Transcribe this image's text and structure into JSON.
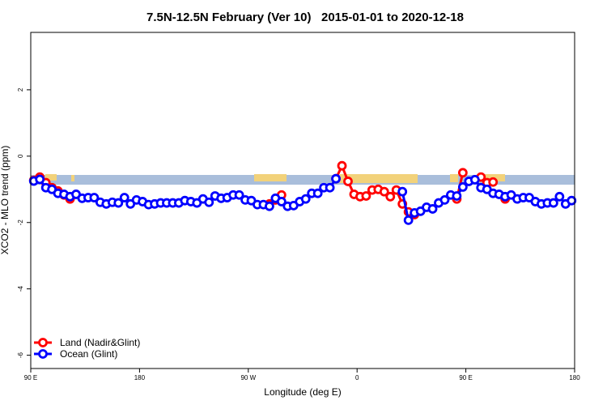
{
  "chart_data": {
    "type": "line",
    "title": "7.5N-12.5N February (Ver 10)   2015-01-01 to 2020-12-18",
    "x_label": "Longitude (deg E)",
    "y_label": "XCO2 - MLO trend (ppm)",
    "xlim": [
      90,
      540
    ],
    "xticks": [
      {
        "value": 90,
        "label": "90 E"
      },
      180,
      {
        "value": 270,
        "label": "90 W"
      },
      {
        "value": 360,
        "label": "0"
      },
      {
        "value": 450,
        "label": "90 E"
      },
      180
    ],
    "ylim": [
      -6.4,
      3.73
    ],
    "yticks": [
      -6,
      -4,
      -2,
      0,
      2
    ],
    "legend": "bottom-left",
    "x": [
      92.5,
      97.5,
      102.5,
      107.5,
      112.5,
      117.5,
      122.5,
      127.5,
      132.5,
      137.5,
      142.5,
      147.5,
      152.5,
      157.5,
      162.5,
      167.5,
      172.5,
      177.5,
      182.5,
      187.5,
      192.5,
      197.5,
      202.5,
      207.5,
      212.5,
      217.5,
      222.5,
      227.5,
      232.5,
      237.5,
      242.5,
      247.5,
      252.5,
      257.5,
      262.5,
      267.5,
      272.5,
      277.5,
      282.5,
      287.5,
      292.5,
      297.5,
      302.5,
      307.5,
      312.5,
      317.5,
      322.5,
      327.5,
      332.5,
      337.5,
      342.5,
      347.5,
      352.5,
      357.5,
      362.5,
      367.5,
      372.5,
      377.5,
      382.5,
      387.5,
      392.5,
      397.5,
      402.5,
      407.5,
      412.5,
      417.5,
      422.5,
      427.5,
      432.5,
      437.5,
      442.5,
      447.5,
      452.5,
      457.5,
      462.5,
      467.5,
      472.5,
      477.5,
      482.5,
      487.5,
      492.5,
      497.5,
      502.5,
      507.5,
      512.5,
      517.5,
      522.5,
      527.5,
      532.5,
      537.5
    ],
    "series": [
      {
        "name": "Land (Nadir&Glint)",
        "color": "#ff0000",
        "values": [
          -0.73,
          -0.63,
          -0.8,
          -0.95,
          -1.05,
          -1.17,
          -1.29,
          null,
          null,
          null,
          null,
          null,
          null,
          null,
          null,
          null,
          null,
          null,
          null,
          null,
          null,
          null,
          null,
          null,
          null,
          null,
          null,
          null,
          null,
          null,
          null,
          null,
          null,
          null,
          null,
          null,
          null,
          null,
          null,
          -1.44,
          -1.32,
          -1.17,
          null,
          null,
          null,
          null,
          null,
          null,
          null,
          null,
          -0.68,
          -0.29,
          -0.76,
          -1.15,
          -1.22,
          -1.2,
          -1.02,
          -1.0,
          -1.07,
          -1.22,
          -1.02,
          -1.44,
          -1.68,
          -1.76,
          null,
          null,
          null,
          null,
          null,
          null,
          -1.29,
          -0.5,
          null,
          null,
          -0.63,
          -0.8,
          -0.78,
          null,
          -1.29,
          null,
          null,
          null,
          null,
          null,
          null,
          null,
          null,
          null,
          null,
          null
        ]
      },
      {
        "name": "Ocean (Glint)",
        "color": "#0000ff",
        "values": [
          -0.75,
          -0.7,
          -0.95,
          -1.0,
          -1.12,
          -1.15,
          -1.22,
          -1.15,
          -1.27,
          -1.25,
          -1.25,
          -1.39,
          -1.44,
          -1.39,
          -1.41,
          -1.25,
          -1.44,
          -1.32,
          -1.37,
          -1.46,
          -1.44,
          -1.41,
          -1.41,
          -1.41,
          -1.41,
          -1.34,
          -1.37,
          -1.41,
          -1.29,
          -1.39,
          -1.2,
          -1.27,
          -1.25,
          -1.17,
          -1.17,
          -1.32,
          -1.34,
          -1.46,
          -1.46,
          -1.51,
          -1.27,
          -1.37,
          -1.51,
          -1.49,
          -1.37,
          -1.29,
          -1.12,
          -1.12,
          -0.95,
          -0.95,
          -0.68,
          null,
          null,
          null,
          null,
          null,
          null,
          null,
          null,
          null,
          null,
          -1.07,
          -1.93,
          -1.71,
          -1.66,
          -1.54,
          -1.59,
          -1.41,
          -1.32,
          -1.17,
          -1.2,
          -0.93,
          -0.76,
          -0.71,
          -0.95,
          -1.0,
          -1.12,
          -1.15,
          -1.22,
          -1.17,
          -1.29,
          -1.25,
          -1.25,
          -1.37,
          -1.44,
          -1.41,
          -1.41,
          -1.22,
          -1.44,
          -1.34
        ]
      }
    ]
  }
}
